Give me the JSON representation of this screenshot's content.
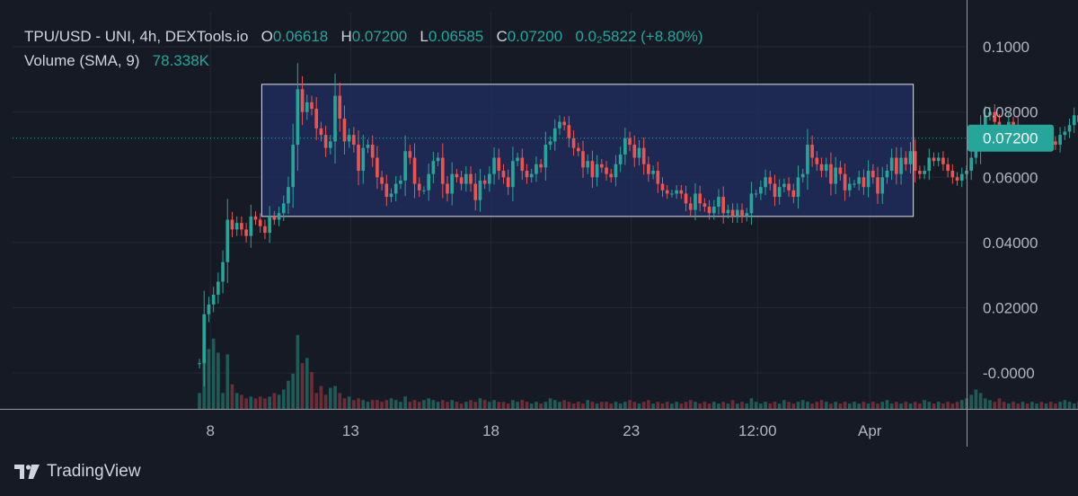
{
  "header": {
    "symbol_title": "TPU/USD - UNI, 4h, DEXTools.io",
    "o_label": "O",
    "o_value": "0.06618",
    "h_label": "H",
    "h_value": "0.07200",
    "l_label": "L",
    "l_value": "0.06585",
    "c_label": "C",
    "c_value": "0.07200",
    "change": "0.0₂5822 (+8.80%)",
    "volume_label": "Volume (SMA, 9)",
    "volume_value": "78.338K"
  },
  "branding": {
    "name": "TradingView",
    "icon": "tradingview-logo-icon"
  },
  "colors": {
    "background": "#161a25",
    "up": "#26a69a",
    "down": "#ef5350",
    "vol_up": "#1f5c57",
    "vol_down": "#6e2c35",
    "box_fill": "#1e2d5a",
    "box_stroke": "#e0e3eb",
    "grid": "#232836",
    "axis_line": "#9598a1"
  },
  "chart_data": {
    "type": "candlestick",
    "title": "TPU/USD - UNI, 4h, DEXTools.io",
    "ylim": [
      -0.011,
      0.1105
    ],
    "y_ticks": [
      "0.1000",
      "0.08000",
      "0.06000",
      "0.04000",
      "0.02000",
      "-0.0000"
    ],
    "y_tick_values": [
      0.1,
      0.08,
      0.06,
      0.04,
      0.02,
      0.0
    ],
    "x_ticks": [
      "8",
      "13",
      "18",
      "23",
      "12:00",
      "Apr"
    ],
    "x_tick_positions": [
      7.05,
      12.05,
      17.05,
      22.05,
      26.55,
      30.55
    ],
    "x_range": [
      0,
      34
    ],
    "last_price": "0.07200",
    "last_price_value": 0.072,
    "grid": true,
    "rectangle": {
      "x0": 8.88,
      "x1": 32.1,
      "y0": 0.048,
      "y1": 0.0885
    },
    "candles": {
      "start": 6.66,
      "step": 0.1667,
      "close": [
        0.003,
        0.018,
        0.021,
        0.024,
        0.028,
        0.034,
        0.047,
        0.044,
        0.046,
        0.044,
        0.042,
        0.048,
        0.047,
        0.045,
        0.043,
        0.048,
        0.047,
        0.049,
        0.052,
        0.057,
        0.07,
        0.087,
        0.08,
        0.083,
        0.081,
        0.075,
        0.073,
        0.069,
        0.071,
        0.085,
        0.078,
        0.071,
        0.073,
        0.07,
        0.062,
        0.069,
        0.07,
        0.066,
        0.06,
        0.058,
        0.054,
        0.055,
        0.058,
        0.059,
        0.068,
        0.066,
        0.058,
        0.056,
        0.056,
        0.061,
        0.065,
        0.066,
        0.058,
        0.055,
        0.061,
        0.06,
        0.058,
        0.061,
        0.058,
        0.053,
        0.059,
        0.058,
        0.061,
        0.066,
        0.062,
        0.06,
        0.057,
        0.065,
        0.066,
        0.062,
        0.06,
        0.061,
        0.064,
        0.063,
        0.07,
        0.071,
        0.075,
        0.077,
        0.076,
        0.072,
        0.069,
        0.068,
        0.063,
        0.065,
        0.06,
        0.064,
        0.063,
        0.061,
        0.06,
        0.064,
        0.067,
        0.072,
        0.07,
        0.066,
        0.069,
        0.064,
        0.061,
        0.062,
        0.058,
        0.056,
        0.055,
        0.055,
        0.056,
        0.055,
        0.052,
        0.05,
        0.055,
        0.052,
        0.051,
        0.049,
        0.051,
        0.054,
        0.049,
        0.05,
        0.048,
        0.05,
        0.048,
        0.049,
        0.055,
        0.055,
        0.057,
        0.06,
        0.058,
        0.054,
        0.057,
        0.058,
        0.056,
        0.054,
        0.06,
        0.061,
        0.07,
        0.066,
        0.064,
        0.062,
        0.064,
        0.058,
        0.063,
        0.061,
        0.056,
        0.058,
        0.058,
        0.06,
        0.057,
        0.062,
        0.06,
        0.055,
        0.06,
        0.062,
        0.066,
        0.061,
        0.066,
        0.064,
        0.068,
        0.062,
        0.061,
        0.062,
        0.066,
        0.065,
        0.066,
        0.064,
        0.062,
        0.06,
        0.059,
        0.061,
        0.062,
        0.066,
        0.068,
        0.075,
        0.079,
        0.08,
        0.077,
        0.074,
        0.072,
        0.077,
        0.076,
        0.073,
        0.073,
        0.071,
        0.071,
        0.072,
        0.071,
        0.072,
        0.071,
        0.07,
        0.073,
        0.074,
        0.076,
        0.079,
        0.077,
        0.078,
        0.078,
        0.079,
        0.076,
        0.074,
        0.068,
        0.07,
        0.069,
        0.071,
        0.069,
        0.069,
        0.073,
        0.075,
        0.07,
        0.069,
        0.066,
        0.072
      ],
      "volume": [
        0.9,
        4.5,
        3.4,
        4.0,
        3.2,
        0.9,
        3.1,
        1.4,
        0.9,
        0.8,
        0.6,
        0.7,
        0.6,
        0.7,
        0.6,
        0.7,
        0.9,
        0.8,
        1.1,
        1.6,
        2.0,
        4.2,
        2.6,
        2.9,
        2.1,
        0.9,
        1.3,
        0.8,
        1.2,
        1.3,
        0.9,
        0.6,
        0.7,
        0.5,
        0.6,
        0.5,
        0.4,
        0.5,
        0.5,
        0.4,
        0.5,
        0.6,
        0.5,
        0.4,
        0.7,
        0.4,
        0.5,
        0.4,
        0.5,
        0.6,
        0.5,
        0.4,
        0.5,
        0.4,
        0.5,
        0.4,
        0.3,
        0.4,
        0.5,
        0.4,
        0.6,
        0.5,
        0.4,
        0.5,
        0.4,
        0.4,
        0.3,
        0.5,
        0.4,
        0.5,
        0.4,
        0.3,
        0.4,
        0.3,
        0.4,
        0.6,
        0.5,
        0.4,
        0.5,
        0.4,
        0.3,
        0.4,
        0.3,
        0.5,
        0.4,
        0.3,
        0.4,
        0.4,
        0.3,
        0.4,
        0.3,
        0.4,
        0.5,
        0.4,
        0.3,
        0.4,
        0.5,
        0.3,
        0.4,
        0.3,
        0.4,
        0.3,
        0.4,
        0.3,
        0.4,
        0.5,
        0.4,
        0.3,
        0.4,
        0.3,
        0.4,
        0.3,
        0.4,
        0.3,
        0.5,
        0.3,
        0.4,
        0.3,
        0.6,
        0.4,
        0.3,
        0.4,
        0.3,
        0.4,
        0.3,
        0.5,
        0.4,
        0.3,
        0.4,
        0.5,
        0.4,
        0.3,
        0.4,
        0.5,
        0.4,
        0.3,
        0.4,
        0.3,
        0.4,
        0.3,
        0.4,
        0.3,
        0.4,
        0.3,
        0.4,
        0.3,
        0.4,
        0.5,
        0.3,
        0.4,
        0.3,
        0.4,
        0.3,
        0.4,
        0.3,
        0.5,
        0.4,
        0.3,
        0.4,
        0.3,
        0.4,
        0.3,
        0.4,
        0.5,
        0.6,
        0.8,
        1.1,
        0.9,
        0.6,
        0.5,
        0.4,
        0.6,
        0.4,
        0.3,
        0.4,
        0.3,
        0.4,
        0.3,
        0.4,
        0.3,
        0.4,
        0.3,
        0.4,
        0.3,
        0.4,
        0.5,
        0.4,
        0.3,
        0.4,
        0.3,
        0.4,
        0.5,
        0.4,
        0.3,
        0.4,
        0.3,
        0.4,
        0.3,
        0.4,
        0.3,
        0.4,
        0.3,
        0.4,
        0.3,
        0.4,
        0.5
      ]
    }
  }
}
